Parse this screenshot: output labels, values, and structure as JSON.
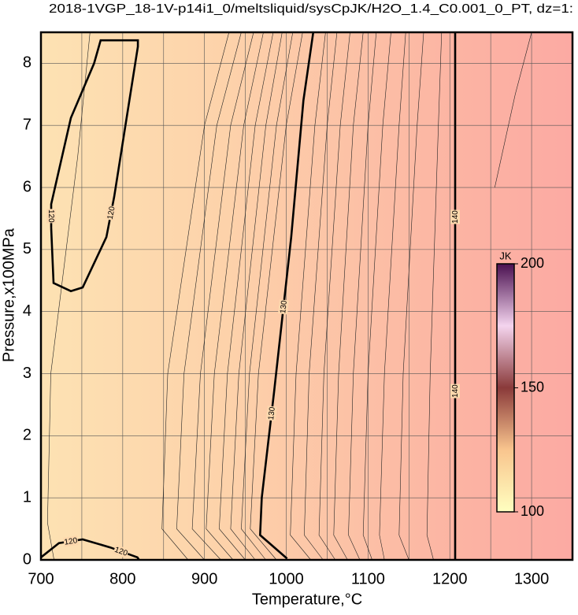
{
  "chart_data": {
    "type": "contour",
    "title": "2018-1VGP_18-1V-p14i1_0/meltsliquid/sysCpJK/H2O_1.4_C0.001_0_PT, dz=1:",
    "x_label": "Temperature,°C",
    "y_label": "Pressure,x100MPa",
    "xlim": [
      700,
      1350
    ],
    "ylim": [
      0,
      8.5
    ],
    "xticks": [
      700,
      800,
      900,
      1000,
      1100,
      1200,
      1300
    ],
    "xminorticks": [
      750,
      850,
      950,
      1050,
      1150,
      1250
    ],
    "yticks": [
      0,
      1,
      2,
      3,
      4,
      5,
      6,
      7,
      8
    ],
    "grid": true,
    "contours": [
      {
        "level": 120,
        "x": [
          712.5,
          715.4,
          736.6,
          751,
          780,
          789.6,
          818.5,
          818.5,
          773,
          765,
          736.6,
          712.5,
          712.5
        ],
        "y": [
          5.35,
          4.46,
          4.33,
          4.39,
          5.2,
          5.85,
          8.27,
          8.37,
          8.37,
          8.0,
          7.12,
          5.73,
          5.35
        ]
      },
      {
        "level": 120,
        "x": [
          700,
          722,
          751,
          784.7,
          818,
          820
        ],
        "y": [
          0.04,
          0.27,
          0.33,
          0.2,
          0.04,
          0
        ]
      },
      {
        "level": 130,
        "x": [
          1001,
          968,
          970,
          985,
          1006,
          1021,
          1033
        ],
        "y": [
          0.02,
          0.4,
          1.0,
          2.7,
          5.2,
          7.4,
          8.5
        ]
      },
      {
        "level": 140,
        "x": [
          1206.5,
          1206.5
        ],
        "y": [
          0,
          8.5
        ]
      }
    ],
    "thin_contours": [
      {
        "level": 121,
        "x": [
          716,
          708,
          712,
          745,
          760
        ],
        "y": [
          0,
          0.6,
          3,
          6.5,
          8.5
        ]
      },
      {
        "level": 122,
        "x": [
          880,
          848,
          855,
          900,
          930
        ],
        "y": [
          0,
          0.5,
          3,
          7,
          8.5
        ]
      },
      {
        "level": 123,
        "x": [
          900,
          866,
          875,
          915,
          945
        ],
        "y": [
          0,
          0.5,
          3,
          7,
          8.5
        ]
      },
      {
        "level": 124,
        "x": [
          920,
          885,
          895,
          932,
          960
        ],
        "y": [
          0,
          0.5,
          3,
          7,
          8.5
        ]
      },
      {
        "level": 125,
        "x": [
          935,
          902,
          912,
          948,
          972
        ],
        "y": [
          0,
          0.5,
          3,
          7,
          8.5
        ]
      },
      {
        "level": 126,
        "x": [
          950,
          918,
          928,
          962,
          984
        ],
        "y": [
          0,
          0.5,
          3,
          7,
          8.5
        ]
      },
      {
        "level": 127,
        "x": [
          962,
          932,
          942,
          975,
          995
        ],
        "y": [
          0,
          0.5,
          3,
          7,
          8.5
        ]
      },
      {
        "level": 128,
        "x": [
          975,
          945,
          955,
          988,
          1008
        ],
        "y": [
          0,
          0.5,
          3,
          7,
          8.5
        ]
      },
      {
        "level": 129,
        "x": [
          988,
          956,
          966,
          1000,
          1020
        ],
        "y": [
          0,
          0.5,
          3,
          7,
          8.5
        ]
      },
      {
        "level": 131,
        "x": [
          1030,
          1005,
          1012,
          1035,
          1048
        ],
        "y": [
          0,
          0.4,
          3,
          7,
          8.5
        ]
      },
      {
        "level": 132,
        "x": [
          1045,
          1022,
          1028,
          1050,
          1062
        ],
        "y": [
          0,
          0.4,
          3,
          7,
          8.5
        ]
      },
      {
        "level": 133,
        "x": [
          1060,
          1040,
          1046,
          1066,
          1078
        ],
        "y": [
          0,
          0.4,
          3,
          7,
          8.5
        ]
      },
      {
        "level": 134,
        "x": [
          1075,
          1058,
          1064,
          1082,
          1094
        ],
        "y": [
          0,
          0.4,
          3,
          7,
          8.5
        ]
      },
      {
        "level": 135,
        "x": [
          1090,
          1076,
          1082,
          1100,
          1110
        ],
        "y": [
          0,
          0.4,
          3,
          7,
          8.5
        ]
      },
      {
        "level": 136,
        "x": [
          1105,
          1094,
          1100,
          1118,
          1128
        ],
        "y": [
          0,
          0.4,
          3,
          7,
          8.5
        ]
      },
      {
        "level": 137,
        "x": [
          1120,
          1114,
          1120,
          1138,
          1146
        ],
        "y": [
          0,
          0.4,
          3,
          7,
          8.5
        ]
      },
      {
        "level": 138,
        "x": [
          1150,
          1138,
          1143,
          1160,
          1168
        ],
        "y": [
          0,
          0.4,
          3,
          7,
          8.5
        ]
      },
      {
        "level": 139,
        "x": [
          1180,
          1172,
          1176,
          1186,
          1190
        ],
        "y": [
          0,
          0.4,
          3,
          7,
          8.5
        ]
      },
      {
        "level": 141,
        "x": [
          1255,
          1280,
          1300
        ],
        "y": [
          6.0,
          7.5,
          8.5
        ]
      }
    ],
    "colorbar": {
      "label": "JK",
      "lim": [
        100,
        200
      ],
      "ticks": [
        100,
        150,
        200
      ],
      "colors": [
        "#ffffc0",
        "#f9c58e",
        "#8a3a3a",
        "#f4d4ee",
        "#4a1050"
      ]
    }
  }
}
